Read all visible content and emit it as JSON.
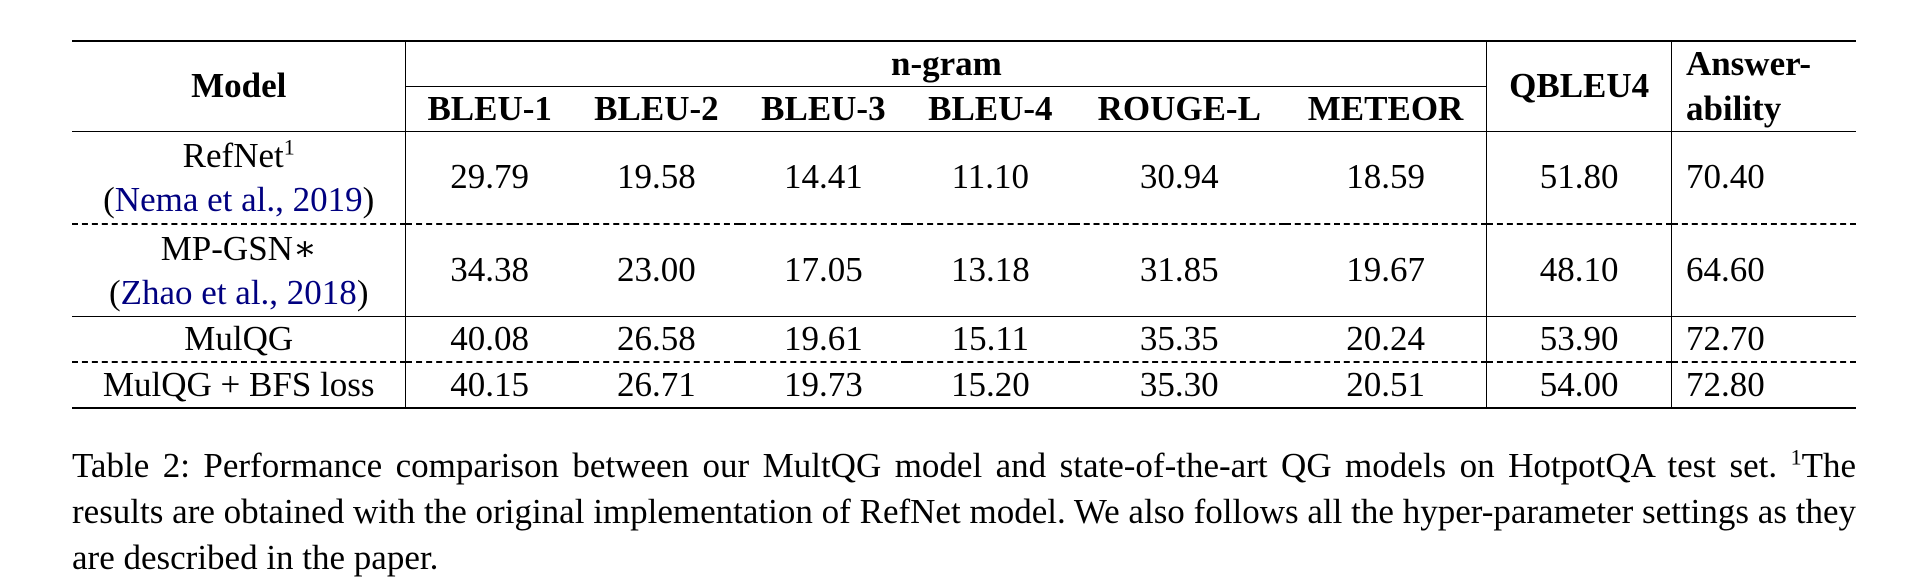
{
  "table": {
    "header": {
      "model": "Model",
      "ngram_group": "n-gram",
      "ngram_columns": [
        "BLEU-1",
        "BLEU-2",
        "BLEU-3",
        "BLEU-4",
        "ROUGE-L",
        "METEOR"
      ],
      "qbleu": "QBLEU4",
      "answerability_line1": "Answer-",
      "answerability_line2": "ability"
    },
    "rows": [
      {
        "name": "RefNet",
        "footnote": "1",
        "cite_open": "(",
        "cite_text": "Nema et al., 2019",
        "cite_close": ")",
        "values": [
          "29.79",
          "19.58",
          "14.41",
          "11.10",
          "30.94",
          "18.59",
          "51.80",
          "70.40"
        ]
      },
      {
        "name": "MP-GSN",
        "suffix": "∗",
        "cite_open": "(",
        "cite_text": "Zhao et al., 2018",
        "cite_close": ")",
        "values": [
          "34.38",
          "23.00",
          "17.05",
          "13.18",
          "31.85",
          "19.67",
          "48.10",
          "64.60"
        ]
      },
      {
        "name": "MulQG",
        "values": [
          "40.08",
          "26.58",
          "19.61",
          "15.11",
          "35.35",
          "20.24",
          "53.90",
          "72.70"
        ]
      },
      {
        "name": "MulQG + BFS loss",
        "values": [
          "40.15",
          "26.71",
          "19.73",
          "15.20",
          "35.30",
          "20.51",
          "54.00",
          "72.80"
        ]
      }
    ]
  },
  "caption": {
    "text_a": "Table 2: Performance comparison between our MultQG model and state-of-the-art QG models on HotpotQA test set. ",
    "footnote_mark": "1",
    "text_b": "The results are obtained with the original implementation of RefNet model. We also follows all the hyper-parameter settings as they are described in the paper."
  }
}
